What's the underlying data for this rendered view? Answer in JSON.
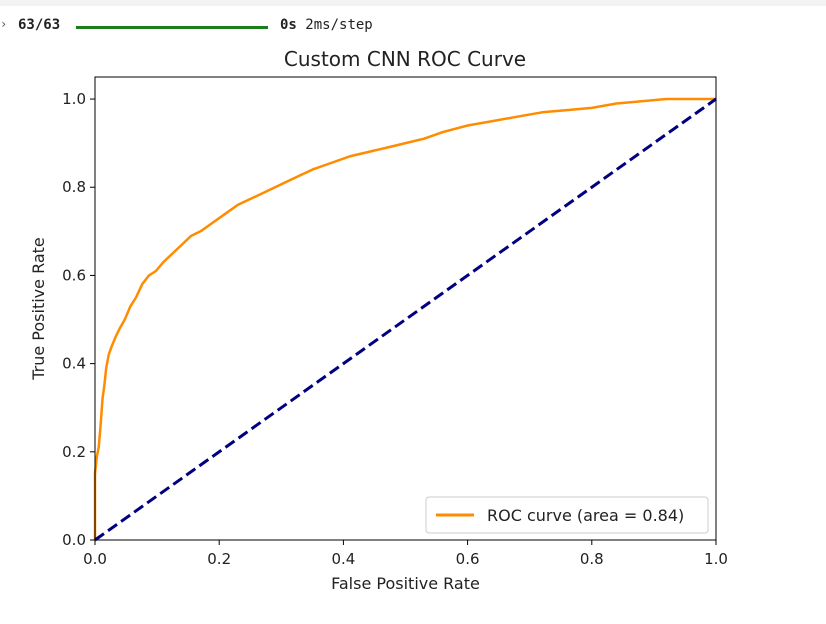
{
  "progress": {
    "steps": "63/63",
    "fraction": 1.0,
    "time": "0s",
    "rate": "2ms/step"
  },
  "chart_data": {
    "type": "line",
    "title": "Custom CNN ROC Curve",
    "xlabel": "False Positive Rate",
    "ylabel": "True Positive Rate",
    "xlim": [
      0.0,
      1.0
    ],
    "ylim": [
      0.0,
      1.05
    ],
    "xticks": [
      "0.0",
      "0.2",
      "0.4",
      "0.6",
      "0.8",
      "1.0"
    ],
    "yticks": [
      "0.0",
      "0.2",
      "0.4",
      "0.6",
      "0.8",
      "1.0"
    ],
    "grid": false,
    "legend_position": "lower-right",
    "series": [
      {
        "name": "ROC curve (area = 0.84)",
        "color": "#ff8c00",
        "style": "solid",
        "x": [
          0.0,
          0.0,
          0.003,
          0.006,
          0.009,
          0.012,
          0.015,
          0.018,
          0.022,
          0.027,
          0.033,
          0.04,
          0.048,
          0.057,
          0.066,
          0.076,
          0.087,
          0.098,
          0.11,
          0.125,
          0.14,
          0.155,
          0.17,
          0.19,
          0.21,
          0.23,
          0.26,
          0.29,
          0.32,
          0.35,
          0.38,
          0.41,
          0.44,
          0.47,
          0.5,
          0.53,
          0.56,
          0.6,
          0.64,
          0.68,
          0.72,
          0.76,
          0.8,
          0.84,
          0.88,
          0.92,
          1.0
        ],
        "y": [
          0.0,
          0.15,
          0.19,
          0.21,
          0.26,
          0.32,
          0.35,
          0.39,
          0.42,
          0.44,
          0.46,
          0.48,
          0.5,
          0.53,
          0.55,
          0.58,
          0.6,
          0.61,
          0.63,
          0.65,
          0.67,
          0.69,
          0.7,
          0.72,
          0.74,
          0.76,
          0.78,
          0.8,
          0.82,
          0.84,
          0.855,
          0.87,
          0.88,
          0.89,
          0.9,
          0.91,
          0.925,
          0.94,
          0.95,
          0.96,
          0.97,
          0.975,
          0.98,
          0.99,
          0.995,
          1.0,
          1.0
        ]
      },
      {
        "name": "",
        "color": "#000080",
        "style": "dashed",
        "x": [
          0.0,
          1.0
        ],
        "y": [
          0.0,
          1.0
        ]
      }
    ]
  }
}
